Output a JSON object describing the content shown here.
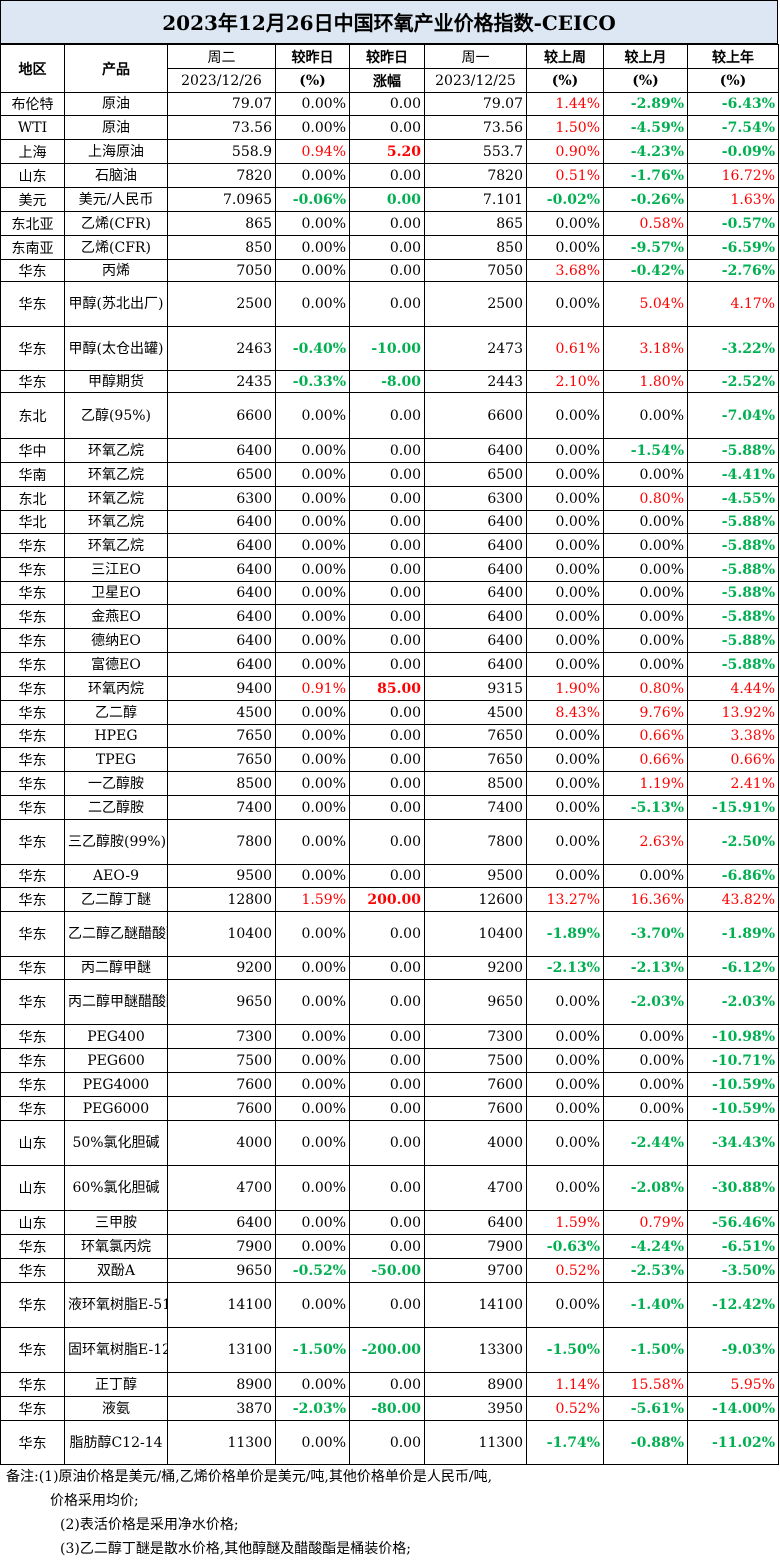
{
  "title": "2023年12月26日中国环氧产业价格指数-CEICO",
  "headers": {
    "region": "地区",
    "product": "产品",
    "tue": "周二",
    "tue_date": "2023/12/26",
    "vs_yday": "较昨日",
    "pct": "(%)",
    "vs_yday2": "较昨日",
    "rise": "涨幅",
    "mon": "周一",
    "mon_date": "2023/12/25",
    "vs_week": "较上周",
    "vs_month": "较上月",
    "vs_year": "较上年"
  },
  "colors": {
    "up": "#ff0000",
    "down": "#00b050",
    "title_bg": "#dde7f3"
  },
  "rows": [
    {
      "region": "布伦特",
      "product": "原油",
      "tue": "79.07",
      "dpct": "0.00%",
      "dabs": "0.00",
      "mon": "79.07",
      "wk": "1.44%",
      "mo": "-2.89%",
      "yr": "-6.43%",
      "h": 23,
      "s": [
        "",
        "",
        "r",
        "g",
        "g"
      ]
    },
    {
      "region": "WTI",
      "product": "原油",
      "tue": "73.56",
      "dpct": "0.00%",
      "dabs": "0.00",
      "mon": "73.56",
      "wk": "1.50%",
      "mo": "-4.59%",
      "yr": "-7.54%",
      "h": 24,
      "s": [
        "",
        "",
        "r",
        "g",
        "g"
      ]
    },
    {
      "region": "上海",
      "product": "上海原油",
      "tue": "558.9",
      "dpct": "0.94%",
      "dabs": "5.20",
      "mon": "553.7",
      "wk": "0.90%",
      "mo": "-4.23%",
      "yr": "-0.09%",
      "h": 24,
      "s": [
        "r",
        "rb",
        "r",
        "g",
        "g"
      ]
    },
    {
      "region": "山东",
      "product": "石脑油",
      "tue": "7820",
      "dpct": "0.00%",
      "dabs": "0.00",
      "mon": "7820",
      "wk": "0.51%",
      "mo": "-1.76%",
      "yr": "16.72%",
      "h": 24,
      "s": [
        "",
        "",
        "r",
        "g",
        "r"
      ]
    },
    {
      "region": "美元",
      "product": "美元/人民币",
      "tue": "7.0965",
      "dpct": "-0.06%",
      "dabs": "0.00",
      "mon": "7.101",
      "wk": "-0.02%",
      "mo": "-0.26%",
      "yr": "1.63%",
      "h": 24,
      "s": [
        "g",
        "g",
        "g",
        "g",
        "r"
      ]
    },
    {
      "region": "东北亚",
      "product": "乙烯(CFR)",
      "tue": "865",
      "dpct": "0.00%",
      "dabs": "0.00",
      "mon": "865",
      "wk": "0.00%",
      "mo": "0.58%",
      "yr": "-0.57%",
      "h": 24,
      "s": [
        "",
        "",
        "",
        "r",
        "g"
      ]
    },
    {
      "region": "东南亚",
      "product": "乙烯(CFR)",
      "tue": "850",
      "dpct": "0.00%",
      "dabs": "0.00",
      "mon": "850",
      "wk": "0.00%",
      "mo": "-9.57%",
      "yr": "-6.59%",
      "h": 24,
      "s": [
        "",
        "",
        "",
        "g",
        "g"
      ]
    },
    {
      "region": "华东",
      "product": "丙烯",
      "tue": "7050",
      "dpct": "0.00%",
      "dabs": "0.00",
      "mon": "7050",
      "wk": "3.68%",
      "mo": "-0.42%",
      "yr": "-2.76%",
      "h": 22,
      "s": [
        "",
        "",
        "r",
        "g",
        "g"
      ]
    },
    {
      "region": "华东",
      "product": "甲醇(苏北出厂)",
      "tue": "2500",
      "dpct": "0.00%",
      "dabs": "0.00",
      "mon": "2500",
      "wk": "0.00%",
      "mo": "5.04%",
      "yr": "4.17%",
      "h": 45,
      "s": [
        "",
        "",
        "",
        "r",
        "r"
      ]
    },
    {
      "region": "华东",
      "product": "甲醇(太仓出罐)",
      "tue": "2463",
      "dpct": "-0.40%",
      "dabs": "-10.00",
      "mon": "2473",
      "wk": "0.61%",
      "mo": "3.18%",
      "yr": "-3.22%",
      "h": 44,
      "s": [
        "g",
        "g",
        "r",
        "r",
        "g"
      ]
    },
    {
      "region": "华东",
      "product": "甲醇期货",
      "tue": "2435",
      "dpct": "-0.33%",
      "dabs": "-8.00",
      "mon": "2443",
      "wk": "2.10%",
      "mo": "1.80%",
      "yr": "-2.52%",
      "h": 22,
      "s": [
        "g",
        "g",
        "r",
        "r",
        "g"
      ]
    },
    {
      "region": "东北",
      "product": "乙醇(95%)",
      "tue": "6600",
      "dpct": "0.00%",
      "dabs": "0.00",
      "mon": "6600",
      "wk": "0.00%",
      "mo": "0.00%",
      "yr": "-7.04%",
      "h": 46,
      "s": [
        "",
        "",
        "",
        "",
        "g"
      ]
    },
    {
      "region": "华中",
      "product": "环氧乙烷",
      "tue": "6400",
      "dpct": "0.00%",
      "dabs": "0.00",
      "mon": "6400",
      "wk": "0.00%",
      "mo": "-1.54%",
      "yr": "-5.88%",
      "h": 24,
      "s": [
        "",
        "",
        "",
        "g",
        "g"
      ]
    },
    {
      "region": "华南",
      "product": "环氧乙烷",
      "tue": "6500",
      "dpct": "0.00%",
      "dabs": "0.00",
      "mon": "6500",
      "wk": "0.00%",
      "mo": "0.00%",
      "yr": "-4.41%",
      "h": 24,
      "s": [
        "",
        "",
        "",
        "",
        "g"
      ]
    },
    {
      "region": "东北",
      "product": "环氧乙烷",
      "tue": "6300",
      "dpct": "0.00%",
      "dabs": "0.00",
      "mon": "6300",
      "wk": "0.00%",
      "mo": "0.80%",
      "yr": "-4.55%",
      "h": 24,
      "s": [
        "",
        "",
        "",
        "r",
        "g"
      ]
    },
    {
      "region": "华北",
      "product": "环氧乙烷",
      "tue": "6400",
      "dpct": "0.00%",
      "dabs": "0.00",
      "mon": "6400",
      "wk": "0.00%",
      "mo": "0.00%",
      "yr": "-5.88%",
      "h": 23,
      "s": [
        "",
        "",
        "",
        "",
        "g"
      ]
    },
    {
      "region": "华东",
      "product": "环氧乙烷",
      "tue": "6400",
      "dpct": "0.00%",
      "dabs": "0.00",
      "mon": "6400",
      "wk": "0.00%",
      "mo": "0.00%",
      "yr": "-5.88%",
      "h": 24,
      "s": [
        "",
        "",
        "",
        "",
        "g"
      ]
    },
    {
      "region": "华东",
      "product": "三江EO",
      "tue": "6400",
      "dpct": "0.00%",
      "dabs": "0.00",
      "mon": "6400",
      "wk": "0.00%",
      "mo": "0.00%",
      "yr": "-5.88%",
      "h": 24,
      "s": [
        "",
        "",
        "",
        "",
        "g"
      ]
    },
    {
      "region": "华东",
      "product": "卫星EO",
      "tue": "6400",
      "dpct": "0.00%",
      "dabs": "0.00",
      "mon": "6400",
      "wk": "0.00%",
      "mo": "0.00%",
      "yr": "-5.88%",
      "h": 23,
      "s": [
        "",
        "",
        "",
        "",
        "g"
      ]
    },
    {
      "region": "华东",
      "product": "金燕EO",
      "tue": "6400",
      "dpct": "0.00%",
      "dabs": "0.00",
      "mon": "6400",
      "wk": "0.00%",
      "mo": "0.00%",
      "yr": "-5.88%",
      "h": 24,
      "s": [
        "",
        "",
        "",
        "",
        "g"
      ]
    },
    {
      "region": "华东",
      "product": "德纳EO",
      "tue": "6400",
      "dpct": "0.00%",
      "dabs": "0.00",
      "mon": "6400",
      "wk": "0.00%",
      "mo": "0.00%",
      "yr": "-5.88%",
      "h": 24,
      "s": [
        "",
        "",
        "",
        "",
        "g"
      ]
    },
    {
      "region": "华东",
      "product": "富德EO",
      "tue": "6400",
      "dpct": "0.00%",
      "dabs": "0.00",
      "mon": "6400",
      "wk": "0.00%",
      "mo": "0.00%",
      "yr": "-5.88%",
      "h": 24,
      "s": [
        "",
        "",
        "",
        "",
        "g"
      ]
    },
    {
      "region": "华东",
      "product": "环氧丙烷",
      "tue": "9400",
      "dpct": "0.91%",
      "dabs": "85.00",
      "mon": "9315",
      "wk": "1.90%",
      "mo": "0.80%",
      "yr": "4.44%",
      "h": 24,
      "s": [
        "r",
        "rb",
        "r",
        "r",
        "r"
      ]
    },
    {
      "region": "华东",
      "product": "乙二醇",
      "tue": "4500",
      "dpct": "0.00%",
      "dabs": "0.00",
      "mon": "4500",
      "wk": "8.43%",
      "mo": "9.76%",
      "yr": "13.92%",
      "h": 24,
      "s": [
        "",
        "",
        "r",
        "r",
        "r"
      ]
    },
    {
      "region": "华东",
      "product": "HPEG",
      "tue": "7650",
      "dpct": "0.00%",
      "dabs": "0.00",
      "mon": "7650",
      "wk": "0.00%",
      "mo": "0.66%",
      "yr": "3.38%",
      "h": 23,
      "s": [
        "",
        "",
        "",
        "r",
        "r"
      ]
    },
    {
      "region": "华东",
      "product": "TPEG",
      "tue": "7650",
      "dpct": "0.00%",
      "dabs": "0.00",
      "mon": "7650",
      "wk": "0.00%",
      "mo": "0.66%",
      "yr": "0.66%",
      "h": 24,
      "s": [
        "",
        "",
        "",
        "r",
        "r"
      ]
    },
    {
      "region": "华东",
      "product": "一乙醇胺",
      "tue": "8500",
      "dpct": "0.00%",
      "dabs": "0.00",
      "mon": "8500",
      "wk": "0.00%",
      "mo": "1.19%",
      "yr": "2.41%",
      "h": 24,
      "s": [
        "",
        "",
        "",
        "r",
        "r"
      ]
    },
    {
      "region": "华东",
      "product": "二乙醇胺",
      "tue": "7400",
      "dpct": "0.00%",
      "dabs": "0.00",
      "mon": "7400",
      "wk": "0.00%",
      "mo": "-5.13%",
      "yr": "-15.91%",
      "h": 24,
      "s": [
        "",
        "",
        "",
        "g",
        "g"
      ]
    },
    {
      "region": "华东",
      "product": "三乙醇胺(99%)",
      "tue": "7800",
      "dpct": "0.00%",
      "dabs": "0.00",
      "mon": "7800",
      "wk": "0.00%",
      "mo": "2.63%",
      "yr": "-2.50%",
      "h": 45,
      "s": [
        "",
        "",
        "",
        "r",
        "g"
      ]
    },
    {
      "region": "华东",
      "product": "AEO-9",
      "tue": "9500",
      "dpct": "0.00%",
      "dabs": "0.00",
      "mon": "9500",
      "wk": "0.00%",
      "mo": "0.00%",
      "yr": "-6.86%",
      "h": 23,
      "s": [
        "",
        "",
        "",
        "",
        "g"
      ]
    },
    {
      "region": "华东",
      "product": "乙二醇丁醚",
      "tue": "12800",
      "dpct": "1.59%",
      "dabs": "200.00",
      "mon": "12600",
      "wk": "13.27%",
      "mo": "16.36%",
      "yr": "43.82%",
      "h": 24,
      "s": [
        "r",
        "rb",
        "r",
        "r",
        "r"
      ]
    },
    {
      "region": "华东",
      "product": "乙二醇乙醚醋酸酯",
      "tue": "10400",
      "dpct": "0.00%",
      "dabs": "0.00",
      "mon": "10400",
      "wk": "-1.89%",
      "mo": "-3.70%",
      "yr": "-1.89%",
      "h": 45,
      "s": [
        "",
        "",
        "g",
        "g",
        "g"
      ]
    },
    {
      "region": "华东",
      "product": "丙二醇甲醚",
      "tue": "9200",
      "dpct": "0.00%",
      "dabs": "0.00",
      "mon": "9200",
      "wk": "-2.13%",
      "mo": "-2.13%",
      "yr": "-6.12%",
      "h": 23,
      "s": [
        "",
        "",
        "g",
        "g",
        "g"
      ]
    },
    {
      "region": "华东",
      "product": "丙二醇甲醚醋酸酯",
      "tue": "9650",
      "dpct": "0.00%",
      "dabs": "0.00",
      "mon": "9650",
      "wk": "0.00%",
      "mo": "-2.03%",
      "yr": "-2.03%",
      "h": 45,
      "s": [
        "",
        "",
        "",
        "g",
        "g"
      ]
    },
    {
      "region": "华东",
      "product": "PEG400",
      "tue": "7300",
      "dpct": "0.00%",
      "dabs": "0.00",
      "mon": "7300",
      "wk": "0.00%",
      "mo": "0.00%",
      "yr": "-10.98%",
      "h": 24,
      "s": [
        "",
        "",
        "",
        "",
        "g"
      ]
    },
    {
      "region": "华东",
      "product": "PEG600",
      "tue": "7500",
      "dpct": "0.00%",
      "dabs": "0.00",
      "mon": "7500",
      "wk": "0.00%",
      "mo": "0.00%",
      "yr": "-10.71%",
      "h": 24,
      "s": [
        "",
        "",
        "",
        "",
        "g"
      ]
    },
    {
      "region": "华东",
      "product": "PEG4000",
      "tue": "7600",
      "dpct": "0.00%",
      "dabs": "0.00",
      "mon": "7600",
      "wk": "0.00%",
      "mo": "0.00%",
      "yr": "-10.59%",
      "h": 24,
      "s": [
        "",
        "",
        "",
        "",
        "g"
      ]
    },
    {
      "region": "华东",
      "product": "PEG6000",
      "tue": "7600",
      "dpct": "0.00%",
      "dabs": "0.00",
      "mon": "7600",
      "wk": "0.00%",
      "mo": "0.00%",
      "yr": "-10.59%",
      "h": 24,
      "s": [
        "",
        "",
        "",
        "",
        "g"
      ]
    },
    {
      "region": "山东",
      "product": "50%氯化胆碱",
      "tue": "4000",
      "dpct": "0.00%",
      "dabs": "0.00",
      "mon": "4000",
      "wk": "0.00%",
      "mo": "-2.44%",
      "yr": "-34.43%",
      "h": 45,
      "s": [
        "",
        "",
        "",
        "g",
        "g"
      ]
    },
    {
      "region": "山东",
      "product": "60%氯化胆碱",
      "tue": "4700",
      "dpct": "0.00%",
      "dabs": "0.00",
      "mon": "4700",
      "wk": "0.00%",
      "mo": "-2.08%",
      "yr": "-30.88%",
      "h": 45,
      "s": [
        "",
        "",
        "",
        "g",
        "g"
      ]
    },
    {
      "region": "山东",
      "product": "三甲胺",
      "tue": "6400",
      "dpct": "0.00%",
      "dabs": "0.00",
      "mon": "6400",
      "wk": "1.59%",
      "mo": "0.79%",
      "yr": "-56.46%",
      "h": 24,
      "s": [
        "",
        "",
        "r",
        "r",
        "g"
      ]
    },
    {
      "region": "华东",
      "product": "环氧氯丙烷",
      "tue": "7900",
      "dpct": "0.00%",
      "dabs": "0.00",
      "mon": "7900",
      "wk": "-0.63%",
      "mo": "-4.24%",
      "yr": "-6.51%",
      "h": 24,
      "s": [
        "",
        "",
        "g",
        "g",
        "g"
      ]
    },
    {
      "region": "华东",
      "product": "双酚A",
      "tue": "9650",
      "dpct": "-0.52%",
      "dabs": "-50.00",
      "mon": "9700",
      "wk": "0.52%",
      "mo": "-2.53%",
      "yr": "-3.50%",
      "h": 24,
      "s": [
        "g",
        "g",
        "r",
        "g",
        "g"
      ]
    },
    {
      "region": "华东",
      "product": "液环氧树脂E-51",
      "tue": "14100",
      "dpct": "0.00%",
      "dabs": "0.00",
      "mon": "14100",
      "wk": "0.00%",
      "mo": "-1.40%",
      "yr": "-12.42%",
      "h": 45,
      "s": [
        "",
        "",
        "",
        "g",
        "g"
      ]
    },
    {
      "region": "华东",
      "product": "固环氧树脂E-12",
      "tue": "13100",
      "dpct": "-1.50%",
      "dabs": "-200.00",
      "mon": "13300",
      "wk": "-1.50%",
      "mo": "-1.50%",
      "yr": "-9.03%",
      "h": 45,
      "s": [
        "g",
        "g",
        "g",
        "g",
        "g"
      ]
    },
    {
      "region": "华东",
      "product": "正丁醇",
      "tue": "8900",
      "dpct": "0.00%",
      "dabs": "0.00",
      "mon": "8900",
      "wk": "1.14%",
      "mo": "15.58%",
      "yr": "5.95%",
      "h": 24,
      "s": [
        "",
        "",
        "r",
        "r",
        "r"
      ]
    },
    {
      "region": "华东",
      "product": "液氨",
      "tue": "3870",
      "dpct": "-2.03%",
      "dabs": "-80.00",
      "mon": "3950",
      "wk": "0.52%",
      "mo": "-5.61%",
      "yr": "-14.00%",
      "h": 24,
      "s": [
        "g",
        "g",
        "r",
        "g",
        "g"
      ]
    },
    {
      "region": "华东",
      "product": "脂肪醇C12-14",
      "tue": "11300",
      "dpct": "0.00%",
      "dabs": "0.00",
      "mon": "11300",
      "wk": "-1.74%",
      "mo": "-0.88%",
      "yr": "-11.02%",
      "h": 44,
      "s": [
        "",
        "",
        "g",
        "g",
        "g"
      ]
    }
  ],
  "notes": {
    "line1": "备注:(1)原油价格是美元/桶,乙烯价格单价是美元/吨,其他价格单价是人民币/吨,",
    "line2": "价格采用均价;",
    "line3": "(2)表活价格是采用净水价格;",
    "line4": "(3)乙二醇丁醚是散水价格,其他醇醚及醋酸酯是桶装价格;"
  }
}
